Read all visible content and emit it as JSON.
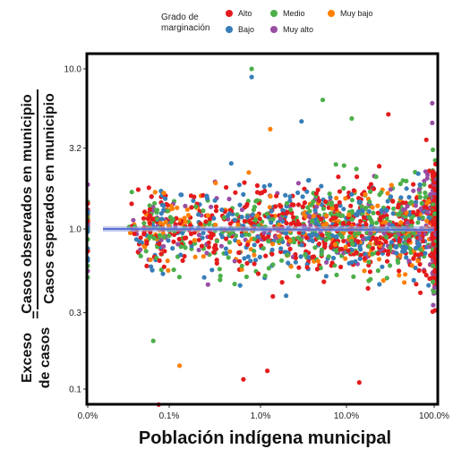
{
  "chart_data": {
    "type": "scatter",
    "xlabel": "Población indígena municipal",
    "ylabel": {
      "left_top": "Exceso",
      "left_bottom": "de casos",
      "equals": "=",
      "numerator": "Casos observados en municipio",
      "denominator": "Casos esperados en municipio"
    },
    "x_scale": "log-like percent",
    "y_scale": "log",
    "x_ticks": [
      {
        "value": 0.0,
        "label": "0.0%"
      },
      {
        "value": 0.1,
        "label": "0.1%"
      },
      {
        "value": 1.0,
        "label": "1.0%"
      },
      {
        "value": 10.0,
        "label": "10.0%"
      },
      {
        "value": 100.0,
        "label": "100.0%"
      }
    ],
    "y_ticks": [
      {
        "value": 0.1,
        "label": "0.1"
      },
      {
        "value": 0.3,
        "label": "0.3"
      },
      {
        "value": 1.0,
        "label": "1.0"
      },
      {
        "value": 3.2,
        "label": "3.2"
      },
      {
        "value": 10.0,
        "label": "10.0"
      }
    ],
    "ylim": [
      0.075,
      13
    ],
    "legend": {
      "title_line1": "Grado de",
      "title_line2": "marginación",
      "placement": "top"
    },
    "series": [
      {
        "name": "Alto",
        "color": "#e41a1c"
      },
      {
        "name": "Bajo",
        "color": "#377eb8"
      },
      {
        "name": "Medio",
        "color": "#4daf4a"
      },
      {
        "name": "Muy alto",
        "color": "#984ea3"
      },
      {
        "name": "Muy bajo",
        "color": "#ff7f00"
      }
    ],
    "trend_line": {
      "color": "#5a6fd6",
      "y_value": 1.0
    },
    "notable_points": [
      {
        "series": "Medio",
        "x": 0.8,
        "y": 10.0
      },
      {
        "series": "Bajo",
        "x": 0.8,
        "y": 8.9
      },
      {
        "series": "Medio",
        "x": 5.3,
        "y": 6.4
      },
      {
        "series": "Medio",
        "x": 11.5,
        "y": 4.9
      },
      {
        "series": "Alto",
        "x": 30,
        "y": 5.2
      },
      {
        "series": "Muy alto",
        "x": 95,
        "y": 6.1
      },
      {
        "series": "Muy alto",
        "x": 95,
        "y": 4.6
      },
      {
        "series": "Bajo",
        "x": 3.0,
        "y": 4.7
      },
      {
        "series": "Muy bajo",
        "x": 1.3,
        "y": 4.2
      },
      {
        "series": "Alto",
        "x": 0.05,
        "y": 0.08
      },
      {
        "series": "Medio",
        "x": 0.035,
        "y": 0.2
      },
      {
        "series": "Muy bajo",
        "x": 0.13,
        "y": 0.14
      },
      {
        "series": "Alto",
        "x": 1.2,
        "y": 0.13
      },
      {
        "series": "Alto",
        "x": 0.65,
        "y": 0.115
      },
      {
        "series": "Alto",
        "x": 14,
        "y": 0.11
      }
    ]
  }
}
